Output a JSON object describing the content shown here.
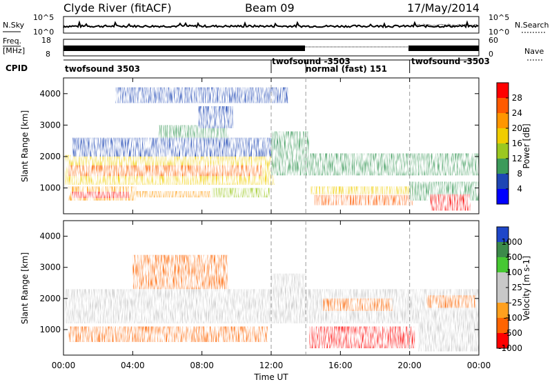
{
  "header": {
    "site": "Clyde River (fitACF)",
    "beam": "Beam 09",
    "date": "17/May/2014"
  },
  "noise_panel": {
    "left_label": "N.Sky",
    "left_ticks": [
      "10^5",
      "10^0"
    ],
    "right_ticks": [
      "10^5",
      "10^0"
    ],
    "right_label": "N.Search"
  },
  "freq_panel": {
    "left_label_1": "Freq.",
    "left_label_2": "[MHz]",
    "left_ticks": [
      "18",
      "8"
    ],
    "right_ticks": [
      "60",
      "0"
    ],
    "right_label": "Nave"
  },
  "cpid": {
    "label": "CPID",
    "segments": [
      {
        "text": "twofsound 3503",
        "start_hour": 0,
        "end_hour": 12
      },
      {
        "text": "twofsound -3503",
        "start_hour": 12,
        "end_hour": 14
      },
      {
        "text": "normal (fast) 151",
        "start_hour": 14,
        "end_hour": 20
      },
      {
        "text": "twofsound -3503",
        "start_hour": 20,
        "end_hour": 24
      }
    ]
  },
  "x_axis": {
    "title": "Time UT",
    "ticks": [
      "00:00",
      "04:00",
      "08:00",
      "12:00",
      "16:00",
      "20:00",
      "00:00"
    ],
    "tick_hours": [
      0,
      4,
      8,
      12,
      16,
      20,
      24
    ]
  },
  "power_colorbar": {
    "title": "Power [dB]",
    "ticks": [
      "28",
      "24",
      "20",
      "16",
      "12",
      "8",
      "4"
    ],
    "colors": [
      "#ff0000",
      "#ff5a00",
      "#ff9600",
      "#f0cd00",
      "#9bc820",
      "#3c9a5a",
      "#1e46b4",
      "#0000ff"
    ]
  },
  "velocity_colorbar": {
    "title": "Velocity [m s-1]",
    "ticks": [
      "1000",
      "500",
      "100",
      "25",
      "-25",
      "-100",
      "-500",
      "-1000"
    ],
    "colors": [
      "#1e46c8",
      "#3c8a4a",
      "#46c832",
      "#c8c8c8",
      "#c8c8c8",
      "#ffa01e",
      "#ff6400",
      "#ff0000"
    ]
  },
  "chart_data": {
    "type": "heatmap",
    "subplots": [
      {
        "name": "power",
        "ylabel": "Slant Range [km]",
        "ylim": [
          180,
          4500
        ],
        "yticks": [
          1000,
          2000,
          3000,
          4000
        ],
        "xlim": [
          0,
          24
        ],
        "bands": [
          {
            "t0": 0.1,
            "t1": 12.2,
            "r0": 1100,
            "r1": 2050,
            "val": 18
          },
          {
            "t0": 0.3,
            "t1": 11.5,
            "r0": 1380,
            "r1": 1720,
            "val": 27
          },
          {
            "t0": 0.3,
            "t1": 4.2,
            "r0": 600,
            "r1": 1050,
            "val": 20
          },
          {
            "t0": 0.5,
            "t1": 3.8,
            "r0": 680,
            "r1": 880,
            "val": 28
          },
          {
            "t0": 4.2,
            "t1": 8.5,
            "r0": 700,
            "r1": 900,
            "val": 22
          },
          {
            "t0": 8.6,
            "t1": 11.9,
            "r0": 700,
            "r1": 1000,
            "val": 15
          },
          {
            "t0": 5.5,
            "t1": 9.5,
            "r0": 2500,
            "r1": 3000,
            "val": 9
          },
          {
            "t0": 7.8,
            "t1": 9.8,
            "r0": 2900,
            "r1": 3600,
            "val": 6
          },
          {
            "t0": 0.5,
            "t1": 12.5,
            "r0": 2000,
            "r1": 2600,
            "val": 5
          },
          {
            "t0": 12.0,
            "t1": 14.2,
            "r0": 1400,
            "r1": 2800,
            "val": 8
          },
          {
            "t0": 14.0,
            "t1": 24.0,
            "r0": 1400,
            "r1": 2100,
            "val": 11
          },
          {
            "t0": 14.3,
            "t1": 20.3,
            "r0": 800,
            "r1": 1050,
            "val": 18
          },
          {
            "t0": 14.5,
            "t1": 20.2,
            "r0": 450,
            "r1": 780,
            "val": 27
          },
          {
            "t0": 20.0,
            "t1": 24.0,
            "r0": 600,
            "r1": 1200,
            "val": 10
          },
          {
            "t0": 21.2,
            "t1": 23.5,
            "r0": 280,
            "r1": 800,
            "val": 28
          },
          {
            "t0": 3.0,
            "t1": 13.0,
            "r0": 3700,
            "r1": 4200,
            "val": 4
          }
        ]
      },
      {
        "name": "velocity",
        "ylabel": "Slant Range [km]",
        "ylim": [
          180,
          4500
        ],
        "yticks": [
          1000,
          2000,
          3000,
          4000
        ],
        "xlim": [
          0,
          24
        ],
        "bands": [
          {
            "t0": 0.1,
            "t1": 24.0,
            "r0": 1200,
            "r1": 2300,
            "val": 0
          },
          {
            "t0": 0.3,
            "t1": 11.8,
            "r0": 600,
            "r1": 1100,
            "val": -150
          },
          {
            "t0": 4.0,
            "t1": 9.5,
            "r0": 2300,
            "r1": 3400,
            "val": -120
          },
          {
            "t0": 12.0,
            "t1": 14.0,
            "r0": 1400,
            "r1": 2800,
            "val": 0
          },
          {
            "t0": 14.2,
            "t1": 20.3,
            "r0": 400,
            "r1": 1100,
            "val": -600
          },
          {
            "t0": 15.0,
            "t1": 19.0,
            "r0": 1600,
            "r1": 2000,
            "val": -150
          },
          {
            "t0": 20.5,
            "t1": 24.0,
            "r0": 300,
            "r1": 1500,
            "val": 0
          },
          {
            "t0": 21.0,
            "t1": 23.8,
            "r0": 1700,
            "r1": 2100,
            "val": -150
          }
        ]
      }
    ]
  }
}
